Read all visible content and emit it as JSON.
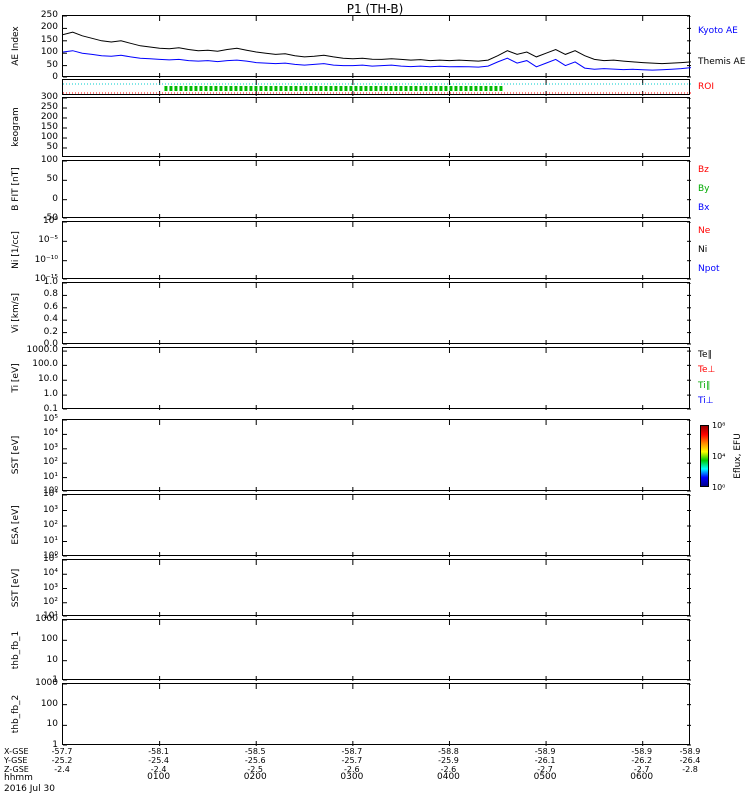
{
  "title": "P1 (TH-B)",
  "axis": {
    "time_ticks": [
      "0100",
      "0200",
      "0300",
      "0400",
      "0500",
      "0600"
    ],
    "time_format_label": "hhmm",
    "date_label": "2016 Jul 30",
    "var_rows": [
      {
        "label": "X-GSE",
        "values": [
          "-57.7",
          "-58.1",
          "-58.5",
          "-58.7",
          "-58.8",
          "-58.9",
          "-58.9",
          "-58.9"
        ]
      },
      {
        "label": "Y-GSE",
        "values": [
          "-25.2",
          "-25.4",
          "-25.6",
          "-25.7",
          "-25.9",
          "-26.1",
          "-26.2",
          "-26.4"
        ]
      },
      {
        "label": "Z-GSE",
        "values": [
          "-2.4",
          "-2.4",
          "-2.5",
          "-2.6",
          "-2.6",
          "-2.7",
          "-2.7",
          "-2.8"
        ]
      }
    ]
  },
  "colorbar": {
    "label": "Eflux, EFU",
    "ticks": [
      "10⁸",
      "10⁴",
      "10⁰"
    ],
    "colors": [
      "#00008b",
      "#0000ff",
      "#00ffff",
      "#00cc00",
      "#ffff00",
      "#ff8800",
      "#ff0000",
      "#990000"
    ]
  },
  "panels": [
    {
      "name": "ae-index",
      "ylabel": "AE Index",
      "chart_index": 0,
      "yticks": [
        {
          "t": "250",
          "f": 0
        },
        {
          "t": "200",
          "f": 0.2
        },
        {
          "t": "150",
          "f": 0.4
        },
        {
          "t": "100",
          "f": 0.6
        },
        {
          "t": "50",
          "f": 0.8
        },
        {
          "t": "0",
          "f": 1
        }
      ],
      "right_labels": [
        {
          "t": "Kyoto AE",
          "c": "#0000ff"
        },
        {
          "t": "Themis AE",
          "c": "#000000"
        }
      ]
    },
    {
      "name": "roi",
      "ylabel": "",
      "chart_index": 1,
      "yticks": [],
      "right_labels": [
        {
          "t": "ROI",
          "c": "#ff0000"
        }
      ]
    },
    {
      "name": "keogram",
      "ylabel": "keogram",
      "yticks": [
        {
          "t": "300",
          "f": 0
        },
        {
          "t": "250",
          "f": 0.167
        },
        {
          "t": "200",
          "f": 0.333
        },
        {
          "t": "150",
          "f": 0.5
        },
        {
          "t": "100",
          "f": 0.667
        },
        {
          "t": "50",
          "f": 0.833
        }
      ],
      "right_labels": []
    },
    {
      "name": "b-fit",
      "ylabel": "B FIT [nT]",
      "yticks": [
        {
          "t": "100",
          "f": 0
        },
        {
          "t": "50",
          "f": 0.333
        },
        {
          "t": "0",
          "f": 0.667
        },
        {
          "t": "-50",
          "f": 1
        }
      ],
      "right_labels": [
        {
          "t": "Bz",
          "c": "#ff0000"
        },
        {
          "t": "By",
          "c": "#00aa00"
        },
        {
          "t": "Bx",
          "c": "#0000ff"
        }
      ]
    },
    {
      "name": "ni",
      "ylabel": "Ni [1/cc]",
      "yticks": [
        {
          "t": "10⁰",
          "f": 0
        },
        {
          "t": "10⁻⁵",
          "f": 0.333
        },
        {
          "t": "10⁻¹⁰",
          "f": 0.667
        },
        {
          "t": "10⁻¹⁵",
          "f": 1
        }
      ],
      "right_labels": [
        {
          "t": "Ne",
          "c": "#ff0000"
        },
        {
          "t": "Ni",
          "c": "#000000"
        },
        {
          "t": "Npot",
          "c": "#0000ff"
        }
      ]
    },
    {
      "name": "vi",
      "ylabel": "Vi [km/s]",
      "yticks": [
        {
          "t": "1.0",
          "f": 0
        },
        {
          "t": "0.8",
          "f": 0.2
        },
        {
          "t": "0.6",
          "f": 0.4
        },
        {
          "t": "0.4",
          "f": 0.6
        },
        {
          "t": "0.2",
          "f": 0.8
        },
        {
          "t": "0.0",
          "f": 1
        }
      ],
      "right_labels": []
    },
    {
      "name": "ti",
      "ylabel": "Ti [eV]",
      "yticks": [
        {
          "t": "1000.0",
          "f": 0.05
        },
        {
          "t": "100.0",
          "f": 0.28
        },
        {
          "t": "10.0",
          "f": 0.52
        },
        {
          "t": "1.0",
          "f": 0.76
        },
        {
          "t": "0.1",
          "f": 1
        }
      ],
      "right_labels": [
        {
          "t": "Te∥",
          "c": "#000000"
        },
        {
          "t": "Te⊥",
          "c": "#ff0000"
        },
        {
          "t": "Ti∥",
          "c": "#00aa00"
        },
        {
          "t": "Ti⊥",
          "c": "#0000ff"
        }
      ]
    },
    {
      "name": "sst-ions",
      "ylabel": "SST [eV]",
      "yticks": [
        {
          "t": "10⁵",
          "f": 0
        },
        {
          "t": "10⁴",
          "f": 0.2
        },
        {
          "t": "10³",
          "f": 0.4
        },
        {
          "t": "10²",
          "f": 0.6
        },
        {
          "t": "10¹",
          "f": 0.8
        },
        {
          "t": "10⁰",
          "f": 1
        }
      ],
      "right_labels": []
    },
    {
      "name": "esa",
      "ylabel": "ESA [eV]",
      "yticks": [
        {
          "t": "10⁴",
          "f": 0
        },
        {
          "t": "10³",
          "f": 0.25
        },
        {
          "t": "10²",
          "f": 0.5
        },
        {
          "t": "10¹",
          "f": 0.75
        },
        {
          "t": "10⁰",
          "f": 1
        }
      ],
      "right_labels": []
    },
    {
      "name": "sst-electrons",
      "ylabel": "SST [eV]",
      "yticks": [
        {
          "t": "10⁵",
          "f": 0
        },
        {
          "t": "10⁴",
          "f": 0.25
        },
        {
          "t": "10³",
          "f": 0.5
        },
        {
          "t": "10²",
          "f": 0.75
        },
        {
          "t": "10¹",
          "f": 1
        }
      ],
      "right_labels": []
    },
    {
      "name": "thb-fb-1",
      "ylabel": "thb_fb_1",
      "yticks": [
        {
          "t": "1000",
          "f": 0
        },
        {
          "t": "100",
          "f": 0.333
        },
        {
          "t": "10",
          "f": 0.667
        },
        {
          "t": "1",
          "f": 1
        }
      ],
      "right_labels": []
    },
    {
      "name": "thb-fb-2",
      "ylabel": "thb_fb_2",
      "yticks": [
        {
          "t": "1000",
          "f": 0
        },
        {
          "t": "100",
          "f": 0.333
        },
        {
          "t": "10",
          "f": 0.667
        },
        {
          "t": "1",
          "f": 1
        }
      ],
      "right_labels": []
    }
  ],
  "chart_data": {
    "type": "line",
    "title": "P1 (TH-B)",
    "xlabel": "hhmm, 2016 Jul 30",
    "x_start_hour": 0,
    "x_step_hour": 0.1,
    "x_range_hours": [
      0,
      6.5
    ],
    "x_tick_labels": [
      "0100",
      "0200",
      "0300",
      "0400",
      "0500",
      "0600"
    ],
    "panels": [
      {
        "panel": "AE Index",
        "ylim": [
          0,
          250
        ],
        "series": [
          {
            "name": "Themis AE",
            "color": "#000000",
            "values": [
              175,
              185,
              170,
              160,
              150,
              145,
              150,
              140,
              130,
              125,
              120,
              118,
              122,
              115,
              110,
              112,
              108,
              115,
              120,
              112,
              105,
              100,
              95,
              98,
              90,
              85,
              88,
              92,
              85,
              80,
              78,
              80,
              76,
              75,
              78,
              75,
              72,
              74,
              70,
              72,
              70,
              72,
              70,
              68,
              72,
              90,
              110,
              95,
              105,
              85,
              100,
              115,
              95,
              110,
              90,
              75,
              70,
              72,
              68,
              65,
              62,
              60,
              58,
              60,
              62,
              65
            ]
          },
          {
            "name": "Kyoto AE",
            "color": "#0000ff",
            "values": [
              105,
              110,
              100,
              95,
              90,
              88,
              92,
              85,
              80,
              78,
              75,
              73,
              75,
              70,
              68,
              70,
              66,
              70,
              72,
              68,
              62,
              60,
              58,
              60,
              55,
              52,
              55,
              58,
              52,
              50,
              50,
              52,
              48,
              50,
              52,
              48,
              46,
              48,
              45,
              47,
              45,
              46,
              45,
              44,
              48,
              65,
              80,
              60,
              70,
              45,
              60,
              75,
              50,
              65,
              40,
              35,
              38,
              36,
              34,
              35,
              33,
              32,
              33,
              35,
              38,
              42
            ]
          }
        ]
      },
      {
        "panel": "ROI",
        "lines": [
          {
            "name": "upper-guide",
            "color": "#00cccc",
            "style": "dotted",
            "span_hours": [
              0,
              6.5
            ]
          },
          {
            "name": "roi-interval",
            "color": "#00bb00",
            "style": "bar",
            "span_hours": [
              1.05,
              4.55
            ]
          },
          {
            "name": "lower-guide",
            "color": "#ff0000",
            "style": "dotted",
            "span_hours": [
              0,
              6.5
            ]
          }
        ]
      },
      {
        "panel": "keogram",
        "ylim": [
          0,
          300
        ],
        "series": []
      },
      {
        "panel": "B FIT [nT]",
        "ylim": [
          -50,
          100
        ],
        "series": []
      },
      {
        "panel": "Ni [1/cc]",
        "ylog": true,
        "ylim": [
          1e-15,
          1
        ],
        "series": []
      },
      {
        "panel": "Vi [km/s]",
        "ylim": [
          0,
          1
        ],
        "series": []
      },
      {
        "panel": "Ti [eV]",
        "ylog": true,
        "ylim": [
          0.1,
          1000
        ],
        "series": []
      },
      {
        "panel": "SST [eV]",
        "ylog": true,
        "ylim": [
          1,
          100000
        ],
        "spectrogram": true,
        "series": []
      },
      {
        "panel": "ESA [eV]",
        "ylog": true,
        "ylim": [
          1,
          10000
        ],
        "spectrogram": true,
        "series": []
      },
      {
        "panel": "SST [eV]",
        "ylog": true,
        "ylim": [
          10,
          100000
        ],
        "spectrogram": true,
        "series": []
      },
      {
        "panel": "thb_fb_1",
        "ylog": true,
        "ylim": [
          1,
          1000
        ],
        "series": []
      },
      {
        "panel": "thb_fb_2",
        "ylog": true,
        "ylim": [
          1,
          1000
        ],
        "series": []
      }
    ]
  }
}
